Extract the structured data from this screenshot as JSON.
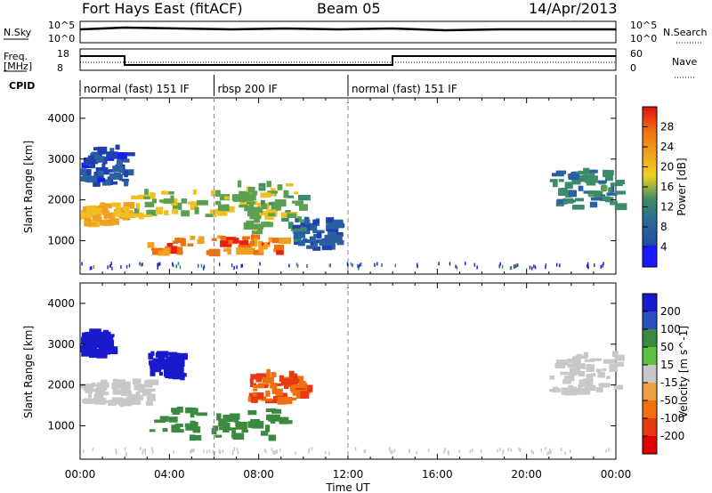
{
  "header": {
    "site": "Fort Hays East (fitACF)",
    "beam": "Beam 05",
    "date": "14/Apr/2013"
  },
  "top_panels": {
    "nsky_label": "N.Sky",
    "nsky_top": "10^5",
    "nsky_bottom": "10^0",
    "nsearch_label": "N.Search",
    "nsearch_top": "10^5",
    "nsearch_bottom": "10^0",
    "freq_label_1": "Freq.",
    "freq_label_2": "[MHz]",
    "freq_top": "18",
    "freq_bottom": "8",
    "nave_label": "Nave",
    "nave_top": "60",
    "nave_bottom": "0",
    "cpid_label": "CPID"
  },
  "cpid_segments": [
    {
      "label": "normal (fast) 151 IF",
      "start": 0,
      "end": 6
    },
    {
      "label": "rbsp 200 IF",
      "start": 6,
      "end": 12
    },
    {
      "label": "normal (fast) 151 IF",
      "start": 12,
      "end": 24
    }
  ],
  "axes": {
    "ylabel": "Slant Range [km]",
    "yticks": [
      "1000",
      "2000",
      "3000",
      "4000"
    ],
    "xlabel": "Time UT",
    "xticks": [
      "00:00",
      "04:00",
      "08:00",
      "12:00",
      "16:00",
      "20:00",
      "00:00"
    ]
  },
  "colors": {
    "power": [
      "#1a1aff",
      "#2040b0",
      "#2a60a0",
      "#3a8c6a",
      "#5aa050",
      "#f0c020",
      "#f0a020",
      "#f07010",
      "#e82010"
    ],
    "velocity": [
      "#1a1acc",
      "#2a50c0",
      "#3a8a40",
      "#60c040",
      "#c8c8c8",
      "#f0a040",
      "#f07010",
      "#e83a10",
      "#e00000"
    ]
  },
  "chart_data": [
    {
      "type": "heatmap",
      "title": "Power",
      "xlabel": "Time UT",
      "ylabel": "Slant Range [km]",
      "xlim": [
        0,
        24
      ],
      "ylim": [
        180,
        4500
      ],
      "colorbar": {
        "label": "Power [dB]",
        "range": [
          0,
          32
        ],
        "ticks": [
          "4",
          "8",
          "12",
          "16",
          "20",
          "24",
          "28"
        ]
      },
      "regions": [
        {
          "t": [
            0.0,
            2.0
          ],
          "range": [
            1400,
            1900
          ],
          "value": 22
        },
        {
          "t": [
            0.0,
            2.0
          ],
          "range": [
            2400,
            3300
          ],
          "value": 6
        },
        {
          "t": [
            2.0,
            8.0
          ],
          "range": [
            1600,
            2200
          ],
          "value": 18
        },
        {
          "t": [
            3.0,
            9.0
          ],
          "range": [
            700,
            1100
          ],
          "value": 26
        },
        {
          "t": [
            7.0,
            10.0
          ],
          "range": [
            1200,
            2400
          ],
          "value": 16
        },
        {
          "t": [
            9.5,
            11.5
          ],
          "range": [
            800,
            1500
          ],
          "value": 8
        },
        {
          "t": [
            21.0,
            24.0
          ],
          "range": [
            1800,
            2700
          ],
          "value": 12
        }
      ]
    },
    {
      "type": "heatmap",
      "title": "Velocity",
      "xlabel": "Time UT",
      "ylabel": "Slant Range [km]",
      "xlim": [
        0,
        24
      ],
      "ylim": [
        180,
        4500
      ],
      "colorbar": {
        "label": "Velocity [m s^-1]",
        "ticks": [
          "200",
          "100",
          "50",
          "15",
          "-15",
          "-50",
          "-100",
          "-200"
        ]
      },
      "regions": [
        {
          "t": [
            0.0,
            1.2
          ],
          "range": [
            2700,
            3300
          ],
          "value": 200
        },
        {
          "t": [
            3.0,
            4.5
          ],
          "range": [
            2200,
            2800
          ],
          "value": 200
        },
        {
          "t": [
            0.0,
            3.0
          ],
          "range": [
            1500,
            2100
          ],
          "value": 0
        },
        {
          "t": [
            3.0,
            9.0
          ],
          "range": [
            700,
            1400
          ],
          "value": 50
        },
        {
          "t": [
            7.5,
            10.0
          ],
          "range": [
            1600,
            2300
          ],
          "value": -100
        },
        {
          "t": [
            21.0,
            24.0
          ],
          "range": [
            1800,
            2800
          ],
          "value": 0
        }
      ]
    }
  ]
}
